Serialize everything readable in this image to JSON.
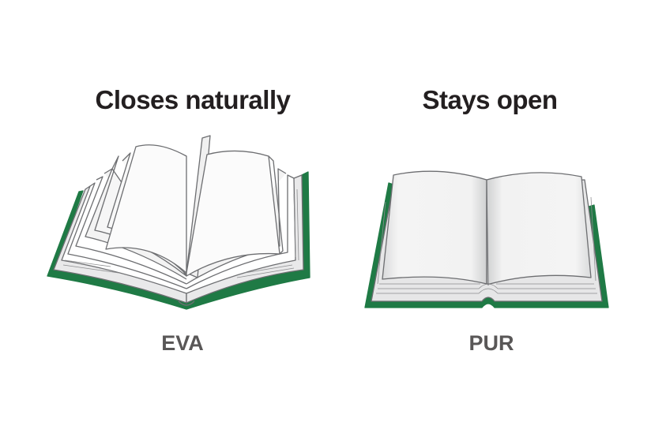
{
  "panels": [
    {
      "heading": "Closes naturally",
      "binding": "EVA",
      "book_icon": "fanned-open-book-icon"
    },
    {
      "heading": "Stays open",
      "binding": "PUR",
      "book_icon": "flat-open-book-icon"
    }
  ],
  "colors": {
    "cover": "#1f7a45",
    "page_line": "#6d6e71",
    "text_heading": "#231f20",
    "text_label": "#595757"
  }
}
